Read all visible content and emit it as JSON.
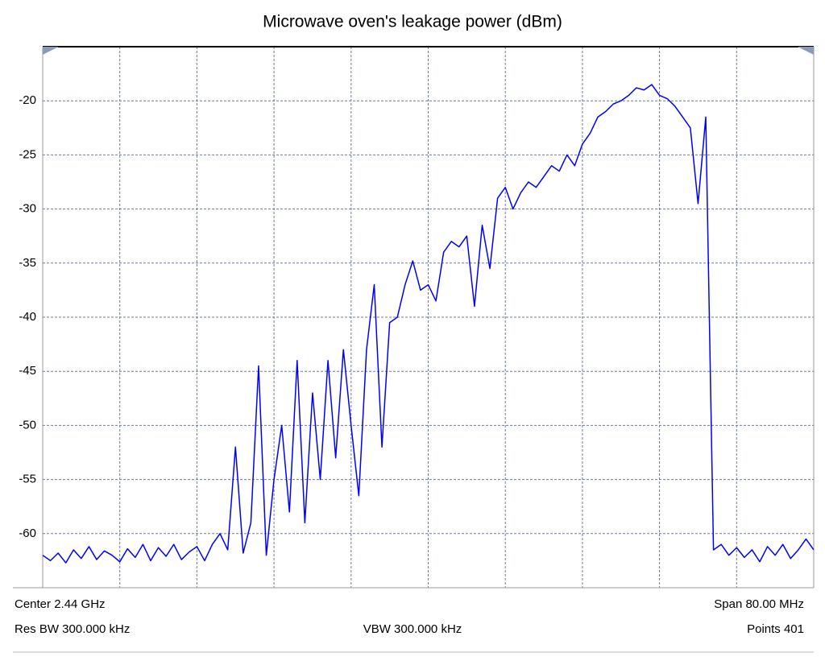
{
  "chart_data": {
    "type": "line",
    "title": "Microwave oven's leakage power (dBm)",
    "x": [
      2400,
      2400.8,
      2401.6,
      2402.4,
      2403.2,
      2404,
      2404.8,
      2405.6,
      2406.4,
      2407.2,
      2408,
      2408.8,
      2409.6,
      2410.4,
      2411.2,
      2412,
      2412.8,
      2413.6,
      2414.4,
      2415.2,
      2416,
      2416.8,
      2417.6,
      2418.4,
      2419.2,
      2420,
      2420.8,
      2421.6,
      2422.4,
      2423.2,
      2424,
      2424.8,
      2425.6,
      2426.4,
      2427.2,
      2428,
      2428.8,
      2429.6,
      2430.4,
      2431.2,
      2432,
      2432.8,
      2433.6,
      2434.4,
      2435.2,
      2436,
      2436.8,
      2437.6,
      2438.4,
      2439.2,
      2440,
      2440.8,
      2441.6,
      2442.4,
      2443.2,
      2444,
      2444.8,
      2445.6,
      2446.4,
      2447.2,
      2448,
      2448.8,
      2449.6,
      2450.4,
      2451.2,
      2452,
      2452.8,
      2453.6,
      2454.4,
      2455.2,
      2456,
      2456.8,
      2457.6,
      2458.4,
      2459.2,
      2460,
      2460.8,
      2461.6,
      2462.4,
      2463.2,
      2464,
      2464.8,
      2465.6,
      2466.4,
      2467.2,
      2468,
      2468.8,
      2469.6,
      2470.4,
      2471.2,
      2472,
      2472.8,
      2473.6,
      2474.4,
      2475.2,
      2476,
      2476.8,
      2477.6,
      2478.4,
      2479.2,
      2480
    ],
    "series": [
      {
        "color": "#0000ff",
        "values": [
          -62,
          -62.5,
          -61.8,
          -62.7,
          -61.5,
          -62.3,
          -61.2,
          -62.4,
          -61.6,
          -62,
          -62.6,
          -61.4,
          -62.2,
          -61,
          -62.5,
          -61.3,
          -62.1,
          -61,
          -62.4,
          -61.7,
          -61.2,
          -62.5,
          -61,
          -60,
          -61.5,
          -52,
          -61.8,
          -59,
          -44.5,
          -62,
          -55,
          -50,
          -58,
          -44,
          -59,
          -47,
          -55,
          -44,
          -53,
          -43,
          -50,
          -56.5,
          -43,
          -37,
          -52,
          -40.5,
          -40,
          -37,
          -34.8,
          -37.5,
          -37,
          -38.5,
          -34,
          -33,
          -33.5,
          -32.5,
          -39,
          -31.5,
          -35.5,
          -29,
          -28,
          -30,
          -28.5,
          -27.5,
          -28,
          -27,
          -26,
          -26.5,
          -25,
          -26,
          -24,
          -23,
          -21.5,
          -21,
          -20.3,
          -20,
          -19.5,
          -18.8,
          -19,
          -18.5,
          -19.5,
          -19.8,
          -20.5,
          -21.5,
          -22.5,
          -29.5,
          -21.5,
          -61.5,
          -61,
          -62,
          -61.3,
          -62.2,
          -61.5,
          -62.6,
          -61.2,
          -62,
          -61,
          -62.3,
          -61.5,
          -60.5,
          -61.5
        ]
      }
    ],
    "xlim": [
      2400,
      2480
    ],
    "xticks": [
      2400,
      2408,
      2416,
      2424,
      2432,
      2440,
      2448,
      2456,
      2464,
      2472,
      2480
    ],
    "ylim": [
      -65,
      -15
    ],
    "yticks": [
      -20,
      -25,
      -30,
      -35,
      -40,
      -45,
      -50,
      -55,
      -60
    ],
    "grid": true,
    "footer": {
      "center": "Center 2.44 GHz",
      "span": "Span 80.00 MHz",
      "res_bw": "Res BW 300.000 kHz",
      "vbw": "VBW 300.000 kHz",
      "points": "Points 401"
    }
  }
}
